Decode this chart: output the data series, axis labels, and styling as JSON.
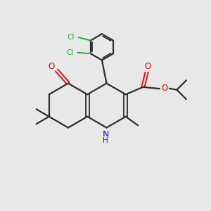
{
  "background_color": "#e8e8e8",
  "bond_color": "#2d2d2d",
  "n_color": "#0000ee",
  "o_color": "#dd0000",
  "cl_color": "#22aa22",
  "figsize": [
    3.0,
    3.0
  ],
  "dpi": 100,
  "xlim": [
    0,
    10
  ],
  "ylim": [
    0,
    10
  ]
}
